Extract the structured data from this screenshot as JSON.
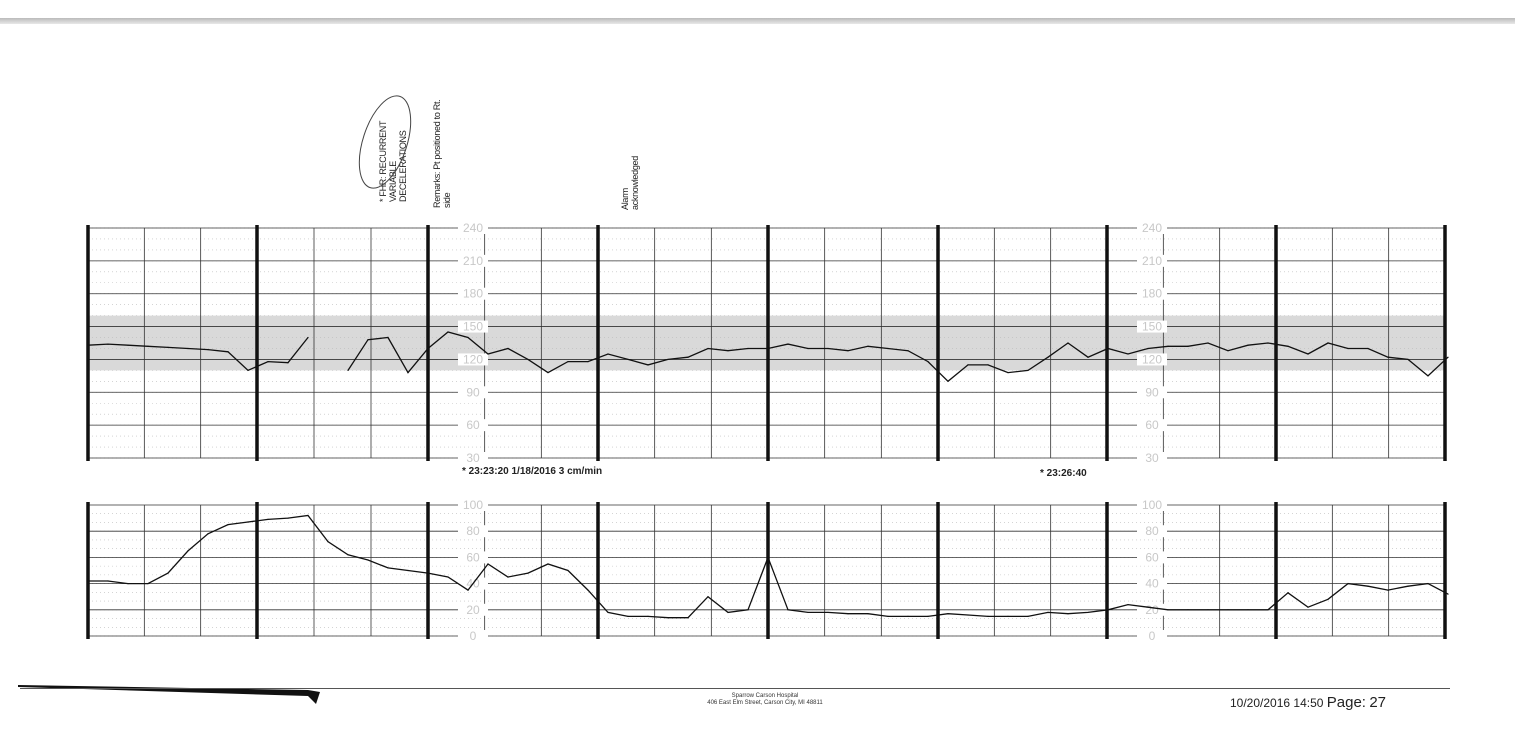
{
  "annotations": {
    "note1": "* FHR: RECURRENT VARIABLE DECELERATIONS",
    "note2": "Remarks: Pt positioned to Rt. side",
    "note3": "Alarm acknowledged"
  },
  "stamps": {
    "start": "* 23:23:20  1/18/2016  3 cm/min",
    "mid": "* 23:26:40"
  },
  "footer": {
    "hospital": "Sparrow Carson Hospital",
    "address": "406 East Elm Street, Carson City, MI 48811",
    "datetime": "10/20/2016 14:50",
    "page_label": "Page:",
    "page_number": "27"
  },
  "colors": {
    "trace": "#111111",
    "grid": "#333333",
    "band": "#d9d9d9",
    "scale_text": "#c8c8c8"
  },
  "chart_data": [
    {
      "type": "line",
      "name_hint": "fetal heart rate",
      "ylim": [
        30,
        240
      ],
      "ticks": [
        240,
        210,
        180,
        150,
        120,
        90,
        60,
        30
      ],
      "shaded_band": [
        110,
        160
      ],
      "grid": true,
      "x_labels": [
        "23:23:20",
        "23:26:40"
      ],
      "values": [
        133,
        134,
        133,
        132,
        131,
        130,
        129,
        127,
        110,
        118,
        117,
        140,
        null,
        110,
        138,
        140,
        108,
        130,
        145,
        140,
        125,
        130,
        120,
        108,
        118,
        118,
        125,
        120,
        115,
        120,
        122,
        130,
        128,
        130,
        130,
        134,
        130,
        130,
        128,
        132,
        130,
        128,
        118,
        100,
        115,
        115,
        108,
        110,
        122,
        135,
        122,
        130,
        125,
        130,
        132,
        132,
        135,
        128,
        133,
        135,
        132,
        125,
        135,
        130,
        130,
        122,
        120,
        105,
        122
      ]
    },
    {
      "type": "line",
      "name_hint": "uterine activity",
      "ylim": [
        0,
        100
      ],
      "ticks": [
        100,
        80,
        60,
        40,
        20,
        0
      ],
      "grid": true,
      "values": [
        42,
        42,
        40,
        40,
        48,
        65,
        78,
        85,
        87,
        89,
        90,
        92,
        72,
        62,
        58,
        52,
        50,
        48,
        45,
        35,
        55,
        45,
        48,
        55,
        50,
        35,
        18,
        15,
        15,
        14,
        14,
        30,
        18,
        20,
        60,
        20,
        18,
        18,
        17,
        17,
        15,
        15,
        15,
        17,
        16,
        15,
        15,
        15,
        18,
        17,
        18,
        20,
        24,
        22,
        20,
        20,
        20,
        20,
        20,
        20,
        33,
        22,
        28,
        40,
        38,
        35,
        38,
        40,
        32
      ]
    }
  ]
}
